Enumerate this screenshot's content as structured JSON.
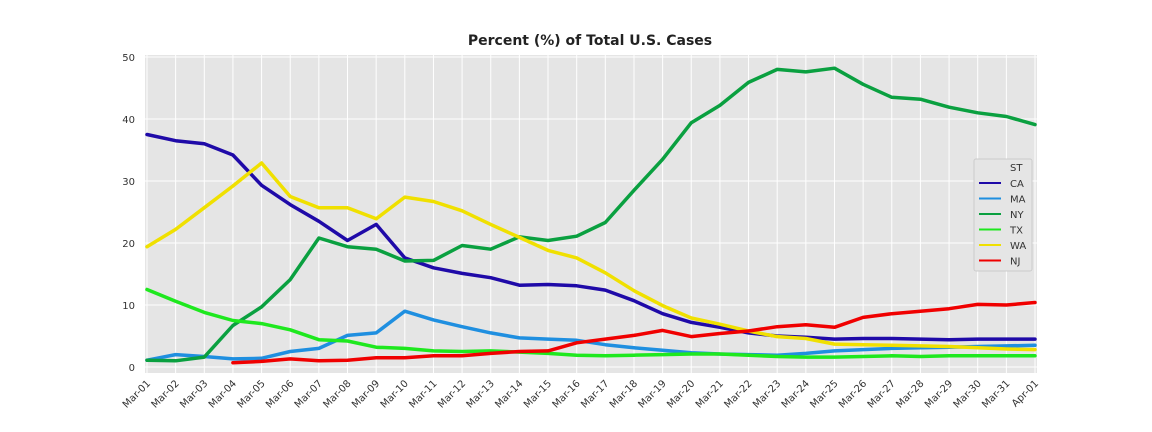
{
  "chart_data": {
    "type": "line",
    "title": "Percent (%) of Total U.S. Cases",
    "xlabel": "",
    "ylabel": "",
    "ylim": [
      0,
      50
    ],
    "yticks": [
      0,
      10,
      20,
      30,
      40,
      50
    ],
    "grid": true,
    "legend_title": "ST",
    "legend_position": "right",
    "categories": [
      "Mar-01",
      "Mar-02",
      "Mar-03",
      "Mar-04",
      "Mar-05",
      "Mar-06",
      "Mar-07",
      "Mar-08",
      "Mar-09",
      "Mar-10",
      "Mar-11",
      "Mar-12",
      "Mar-13",
      "Mar-14",
      "Mar-15",
      "Mar-16",
      "Mar-17",
      "Mar-18",
      "Mar-19",
      "Mar-20",
      "Mar-21",
      "Mar-22",
      "Mar-23",
      "Mar-24",
      "Mar-25",
      "Mar-26",
      "Mar-27",
      "Mar-28",
      "Mar-29",
      "Mar-30",
      "Mar-31",
      "Apr-01"
    ],
    "series": [
      {
        "name": "CA",
        "color": "#1f0aa8",
        "values": [
          37.5,
          36.5,
          36,
          34.2,
          29.3,
          26.2,
          23.5,
          20.4,
          23,
          17.6,
          16,
          15.1,
          14.4,
          13.2,
          13.3,
          13.1,
          12.4,
          10.7,
          8.6,
          7.2,
          6.4,
          5.5,
          5,
          4.8,
          4.5,
          4.6,
          4.6,
          4.5,
          4.4,
          4.5,
          4.5,
          4.5
        ]
      },
      {
        "name": "MA",
        "color": "#1f8fe0",
        "values": [
          1.1,
          2,
          1.7,
          1.3,
          1.4,
          2.5,
          3,
          5.1,
          5.5,
          9,
          7.6,
          6.5,
          5.5,
          4.7,
          4.5,
          4.3,
          3.6,
          3.1,
          2.7,
          2.3,
          2.1,
          2,
          1.9,
          2.2,
          2.6,
          2.8,
          3,
          3.1,
          3.2,
          3.3,
          3.4,
          3.5
        ]
      },
      {
        "name": "NY",
        "color": "#0aa040",
        "values": [
          1.1,
          1,
          1.6,
          6.7,
          9.7,
          14.1,
          20.8,
          19.4,
          19,
          17.1,
          17.2,
          19.6,
          19,
          21,
          20.4,
          21.1,
          23.3,
          28.5,
          33.5,
          39.4,
          42.2,
          45.9,
          48,
          47.6,
          48.2,
          45.6,
          43.5,
          43.2,
          41.9,
          41,
          40.4,
          39.1
        ]
      },
      {
        "name": "TX",
        "color": "#1ee81e",
        "values": [
          12.5,
          10.6,
          8.8,
          7.5,
          7,
          6,
          4.4,
          4.2,
          3.2,
          3,
          2.6,
          2.5,
          2.6,
          2.4,
          2.2,
          1.9,
          1.8,
          1.9,
          2,
          2.1,
          2.1,
          1.9,
          1.7,
          1.6,
          1.6,
          1.7,
          1.8,
          1.7,
          1.8,
          1.8,
          1.8,
          1.8
        ]
      },
      {
        "name": "WA",
        "color": "#f0e000",
        "values": [
          19.4,
          22.2,
          25.7,
          29.2,
          32.9,
          27.5,
          25.7,
          25.7,
          23.9,
          27.4,
          26.7,
          25.2,
          23,
          20.9,
          18.8,
          17.6,
          15.2,
          12.3,
          9.9,
          7.9,
          6.9,
          5.8,
          4.9,
          4.6,
          3.7,
          3.6,
          3.5,
          3.4,
          3.3,
          3.1,
          2.9,
          2.8
        ]
      },
      {
        "name": "NJ",
        "color": "#f00000",
        "values": [
          null,
          null,
          null,
          0.7,
          0.9,
          1.3,
          1,
          1.1,
          1.5,
          1.5,
          1.8,
          1.8,
          2.2,
          2.5,
          2.6,
          3.9,
          4.5,
          5.1,
          5.9,
          4.9,
          5.4,
          5.8,
          6.5,
          6.8,
          6.4,
          8,
          8.6,
          9,
          9.4,
          10.1,
          10,
          10.4
        ]
      }
    ]
  }
}
